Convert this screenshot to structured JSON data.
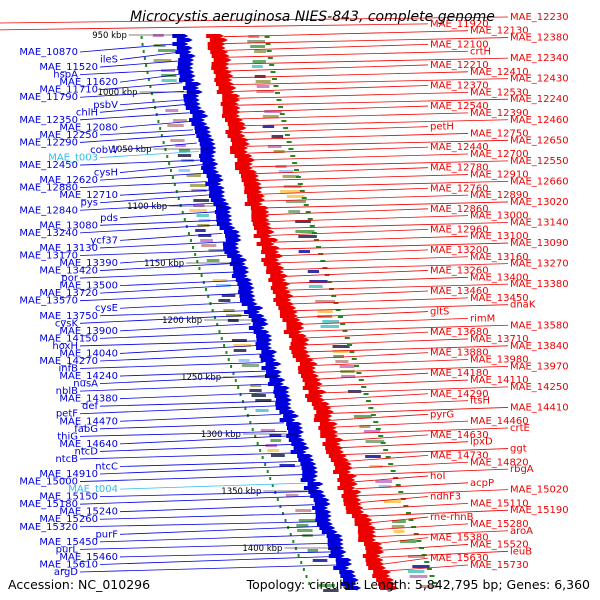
{
  "title": "Microcystis aeruginosa NIES-843, complete genome",
  "footer": {
    "accession": "Accession: NC_010296",
    "summary": "Topology: circular; Length: 5,842,795 bp; Genes: 6,360"
  },
  "colors": {
    "minus_strand": "#0000dd",
    "plus_strand": "#ee0000",
    "rna": "#33bbee",
    "gc_skew": "#228822",
    "backbone": "#888888"
  },
  "scale_marks": [
    "950 kbp",
    "1000 kbp",
    "1050 kbp",
    "1100 kbp",
    "1150 kbp",
    "1200 kbp",
    "1250 kbp",
    "1300 kbp",
    "1350 kbp",
    "1400 kbp"
  ],
  "left_labels": [
    "MAE_10870",
    "ileS",
    "MAE_11520",
    "hspA",
    "MAE_11620",
    "MAE_11710",
    "MAE_11790",
    "psbV",
    "chlH",
    "MAE_12350",
    "MAE_12080",
    "MAE_12250",
    "MAE_12290",
    "cobW",
    "MAE_t003",
    "MAE_12450",
    "cysH",
    "MAE_12620",
    "MAE_12880",
    "MAE_12710",
    "pys",
    "MAE_12840",
    "pds",
    "MAE_13080",
    "MAE_13240",
    "ycf37",
    "MAE_13130",
    "MAE_13170",
    "MAE_13390",
    "MAE_13420",
    "por",
    "MAE_13500",
    "MAE_13720",
    "MAE_13570",
    "cysE",
    "MAE_13750",
    "cysK",
    "MAE_13900",
    "MAE_14150",
    "hoxH",
    "MAE_14040",
    "MAE_14270",
    "infB",
    "MAE_14240",
    "nusA",
    "nblB",
    "MAE_14380",
    "def",
    "petF",
    "MAE_14470",
    "fabG",
    "thiG",
    "MAE_14640",
    "ntcD",
    "ntcB",
    "ntcC",
    "MAE_14910",
    "MAE_15000",
    "MAE_t004",
    "MAE_15150",
    "MAE_15180",
    "MAE_15240",
    "MAE_15260",
    "MAE_15320",
    "purF",
    "MAE_15450",
    "purL",
    "MAE_15460",
    "MAE_15610",
    "argD"
  ],
  "right_labels": [
    "MAE_12230",
    "MAE_11920",
    "MAE_12130",
    "MAE_12380",
    "MAE_12100",
    "crtH",
    "MAE_12340",
    "MAE_12210",
    "MAE_12410",
    "MAE_12430",
    "MAE_12370",
    "MAE_12530",
    "MAE_12240",
    "MAE_12540",
    "MAE_12390",
    "MAE_12460",
    "petH",
    "MAE_12750",
    "MAE_12650",
    "MAE_12440",
    "MAE_12700",
    "MAE_12550",
    "MAE_12780",
    "MAE_12910",
    "MAE_12660",
    "MAE_12760",
    "MAE_12890",
    "MAE_13020",
    "MAE_12860",
    "MAE_13000",
    "MAE_13140",
    "MAE_12960",
    "MAE_13100",
    "MAE_13090",
    "MAE_13200",
    "MAE_13160",
    "MAE_13270",
    "MAE_13260",
    "MAE_13400",
    "MAE_13380",
    "MAE_13460",
    "MAE_13450",
    "dnaK",
    "gltS",
    "rimM",
    "MAE_13580",
    "MAE_13680",
    "MAE_13710",
    "MAE_13840",
    "MAE_13880",
    "MAE_13980",
    "MAE_13970",
    "MAE_14180",
    "MAE_14110",
    "MAE_14250",
    "MAE_14290",
    "ftsH",
    "MAE_14410",
    "pyrG",
    "MAE_14460",
    "crtE",
    "MAE_14630",
    "lpxD",
    "ggt",
    "MAE_14730",
    "MAE_14820",
    "rbgA",
    "hoI",
    "acpP",
    "MAE_15020",
    "ndhF3",
    "MAE_15110",
    "MAE_15190",
    "rne-rhnB",
    "MAE_15280",
    "aroA",
    "MAE_15380",
    "MAE_15520",
    "leuB",
    "MAE_15630",
    "MAE_15730"
  ]
}
